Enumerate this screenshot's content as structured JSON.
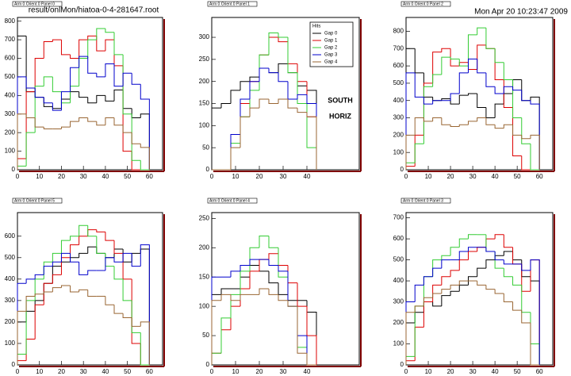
{
  "header": {
    "file": "result/onlMon/hiatoa-0-4-281647.root",
    "date": "Mon Apr 20 10:23:47 2009"
  },
  "chart_data": [
    {
      "type": "histogram",
      "title": "Arm 0 Orient 0 Panel 0",
      "bins": [
        0,
        4,
        8,
        12,
        16,
        20,
        24,
        28,
        32,
        36,
        40,
        44,
        48,
        52,
        56,
        60
      ],
      "xlim": [
        0,
        66
      ],
      "ylim": [
        0,
        820
      ],
      "xticks": [
        0,
        10,
        20,
        30,
        40,
        50,
        60
      ],
      "yticks": [
        0,
        100,
        200,
        300,
        400,
        500,
        600,
        700,
        800
      ],
      "series": [
        {
          "color": "#000000",
          "values": [
            720,
            420,
            390,
            340,
            330,
            380,
            420,
            390,
            360,
            400,
            370,
            430,
            330,
            280,
            300
          ]
        },
        {
          "color": "#dd0000",
          "values": [
            60,
            420,
            600,
            690,
            700,
            620,
            600,
            700,
            720,
            640,
            700,
            560,
            100,
            0,
            0
          ]
        },
        {
          "color": "#33cc33",
          "values": [
            20,
            200,
            450,
            500,
            420,
            360,
            450,
            600,
            700,
            760,
            740,
            620,
            300,
            50,
            0
          ]
        },
        {
          "color": "#0000cc",
          "values": [
            500,
            440,
            390,
            360,
            320,
            420,
            550,
            610,
            520,
            500,
            570,
            450,
            520,
            460,
            380
          ]
        },
        {
          "color": "#996633",
          "values": [
            300,
            280,
            230,
            220,
            220,
            230,
            260,
            280,
            260,
            240,
            280,
            240,
            200,
            140,
            120
          ]
        }
      ]
    },
    {
      "type": "histogram",
      "title": "Arm 0 Orient 0 Panel 1",
      "bins": [
        0,
        4,
        8,
        12,
        16,
        20,
        24,
        28,
        32,
        36,
        40,
        44
      ],
      "xlim": [
        0,
        62
      ],
      "ylim": [
        0,
        345
      ],
      "xticks": [
        0,
        10,
        20,
        30,
        40
      ],
      "yticks": [
        0,
        50,
        100,
        150,
        200,
        250,
        300
      ],
      "legend": {
        "title": "Hits",
        "position": "top-right"
      },
      "annotations": [
        "SOUTH",
        "HORIZ"
      ],
      "series": [
        {
          "name": "Gap 0",
          "color": "#000000",
          "values": [
            140,
            150,
            180,
            200,
            210,
            230,
            220,
            240,
            220,
            190,
            180
          ]
        },
        {
          "name": "Gap 1",
          "color": "#dd0000",
          "values": [
            0,
            0,
            80,
            150,
            200,
            260,
            300,
            290,
            240,
            200,
            120
          ]
        },
        {
          "name": "Gap 2",
          "color": "#33cc33",
          "values": [
            0,
            0,
            60,
            120,
            180,
            260,
            310,
            300,
            220,
            150,
            50
          ]
        },
        {
          "name": "Gap 3",
          "color": "#0000cc",
          "values": [
            0,
            0,
            80,
            160,
            200,
            230,
            220,
            200,
            160,
            170,
            150
          ]
        },
        {
          "name": "Gap 4",
          "color": "#996633",
          "values": [
            0,
            0,
            50,
            120,
            140,
            160,
            150,
            160,
            140,
            130,
            120
          ]
        }
      ]
    },
    {
      "type": "histogram",
      "title": "Arm 0 Orient 0 Panel 2",
      "bins": [
        0,
        4,
        8,
        12,
        16,
        20,
        24,
        28,
        32,
        36,
        40,
        44,
        48,
        52,
        56,
        60
      ],
      "xlim": [
        0,
        66
      ],
      "ylim": [
        0,
        880
      ],
      "xticks": [
        0,
        10,
        20,
        30,
        40,
        50,
        60
      ],
      "yticks": [
        0,
        100,
        200,
        300,
        400,
        500,
        600,
        700,
        800
      ],
      "series": [
        {
          "color": "#000000",
          "values": [
            700,
            560,
            420,
            400,
            410,
            380,
            430,
            440,
            360,
            300,
            380,
            440,
            520,
            400,
            420
          ]
        },
        {
          "color": "#dd0000",
          "values": [
            20,
            200,
            500,
            680,
            700,
            600,
            620,
            580,
            720,
            700,
            520,
            360,
            80,
            0,
            0
          ]
        },
        {
          "color": "#33cc33",
          "values": [
            40,
            150,
            480,
            550,
            650,
            640,
            600,
            780,
            820,
            700,
            620,
            520,
            300,
            150,
            0
          ]
        },
        {
          "color": "#0000cc",
          "values": [
            560,
            420,
            380,
            400,
            400,
            440,
            560,
            640,
            560,
            480,
            440,
            480,
            460,
            400,
            380
          ]
        },
        {
          "color": "#996633",
          "values": [
            200,
            300,
            280,
            300,
            260,
            250,
            260,
            280,
            300,
            260,
            240,
            260,
            200,
            180,
            200
          ]
        }
      ]
    },
    {
      "type": "histogram",
      "title": "Arm 0 Orient 0 Panel 5",
      "bins": [
        0,
        4,
        8,
        12,
        16,
        20,
        24,
        28,
        32,
        36,
        40,
        44,
        48,
        52,
        56,
        60
      ],
      "xlim": [
        0,
        66
      ],
      "ylim": [
        0,
        710
      ],
      "xticks": [
        0,
        10,
        20,
        30,
        40,
        50,
        60
      ],
      "yticks": [
        0,
        100,
        200,
        300,
        400,
        500,
        600
      ],
      "series": [
        {
          "color": "#000000",
          "values": [
            200,
            250,
            300,
            380,
            460,
            480,
            500,
            520,
            550,
            520,
            500,
            540,
            480,
            520,
            540
          ]
        },
        {
          "color": "#dd0000",
          "values": [
            20,
            120,
            280,
            380,
            420,
            500,
            560,
            600,
            630,
            620,
            580,
            520,
            400,
            100,
            0
          ]
        },
        {
          "color": "#33cc33",
          "values": [
            50,
            300,
            400,
            480,
            520,
            580,
            600,
            650,
            600,
            520,
            460,
            400,
            300,
            150,
            0
          ]
        },
        {
          "color": "#0000cc",
          "values": [
            380,
            400,
            420,
            460,
            480,
            520,
            480,
            420,
            440,
            440,
            500,
            480,
            520,
            460,
            560
          ]
        },
        {
          "color": "#996633",
          "values": [
            250,
            320,
            330,
            340,
            360,
            370,
            340,
            350,
            320,
            320,
            280,
            240,
            220,
            180,
            200
          ]
        }
      ]
    },
    {
      "type": "histogram",
      "title": "Arm 0 Orient 0 Panel 4",
      "bins": [
        0,
        4,
        8,
        12,
        16,
        20,
        24,
        28,
        32,
        36,
        40,
        44
      ],
      "xlim": [
        0,
        62
      ],
      "ylim": [
        0,
        260
      ],
      "xticks": [
        0,
        10,
        20,
        30,
        40
      ],
      "yticks": [
        0,
        50,
        100,
        150,
        200,
        250
      ],
      "series": [
        {
          "color": "#000000",
          "values": [
            120,
            130,
            130,
            150,
            170,
            160,
            140,
            120,
            110,
            110,
            90
          ]
        },
        {
          "color": "#dd0000",
          "values": [
            20,
            60,
            100,
            130,
            160,
            180,
            190,
            170,
            140,
            100,
            50
          ]
        },
        {
          "color": "#33cc33",
          "values": [
            20,
            80,
            120,
            160,
            200,
            220,
            200,
            150,
            100,
            30,
            0
          ]
        },
        {
          "color": "#0000cc",
          "values": [
            150,
            150,
            160,
            170,
            180,
            180,
            170,
            160,
            100,
            50,
            0
          ]
        },
        {
          "color": "#996633",
          "values": [
            110,
            120,
            110,
            120,
            120,
            130,
            120,
            110,
            100,
            20,
            0
          ]
        }
      ]
    },
    {
      "type": "histogram",
      "title": "Arm 0 Orient 0 Panel 3",
      "bins": [
        0,
        4,
        8,
        12,
        16,
        20,
        24,
        28,
        32,
        36,
        40,
        44,
        48,
        52,
        56,
        60
      ],
      "xlim": [
        0,
        66
      ],
      "ylim": [
        0,
        725
      ],
      "xticks": [
        0,
        10,
        20,
        30,
        40,
        50,
        60
      ],
      "yticks": [
        0,
        100,
        200,
        300,
        400,
        500,
        600,
        700
      ],
      "series": [
        {
          "color": "#000000",
          "values": [
            200,
            250,
            300,
            280,
            330,
            350,
            380,
            420,
            460,
            500,
            520,
            540,
            500,
            420,
            400
          ]
        },
        {
          "color": "#dd0000",
          "values": [
            20,
            180,
            300,
            380,
            420,
            450,
            500,
            540,
            560,
            600,
            620,
            560,
            480,
            350,
            500
          ]
        },
        {
          "color": "#33cc33",
          "values": [
            40,
            280,
            420,
            500,
            520,
            560,
            600,
            620,
            620,
            540,
            460,
            420,
            380,
            250,
            100
          ]
        },
        {
          "color": "#0000cc",
          "values": [
            300,
            380,
            420,
            460,
            500,
            500,
            540,
            560,
            560,
            540,
            500,
            480,
            480,
            450,
            500
          ]
        },
        {
          "color": "#996633",
          "values": [
            250,
            280,
            320,
            340,
            360,
            380,
            400,
            400,
            380,
            360,
            340,
            300,
            260,
            200,
            0
          ]
        }
      ]
    }
  ]
}
